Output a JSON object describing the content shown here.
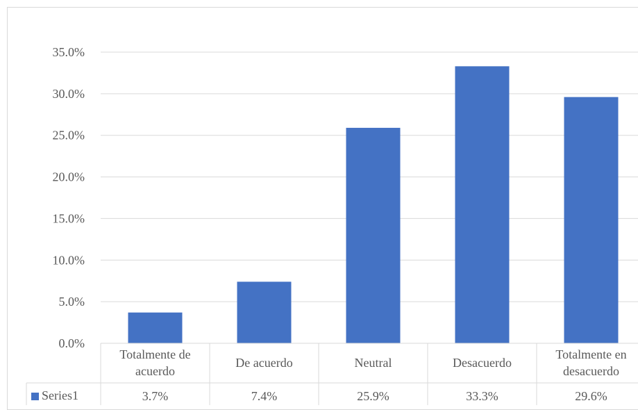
{
  "chart_data": {
    "type": "bar",
    "categories": [
      [
        "Totalmente de",
        "acuerdo"
      ],
      [
        "De acuerdo"
      ],
      [
        "Neutral"
      ],
      [
        "Desacuerdo"
      ],
      [
        "Totalmente en",
        "desacuerdo"
      ]
    ],
    "series": [
      {
        "name": "Series1",
        "values": [
          3.7,
          7.4,
          25.9,
          33.3,
          29.6
        ],
        "labels": [
          "3.7%",
          "7.4%",
          "25.9%",
          "33.3%",
          "29.6%"
        ],
        "color": "#4472c4"
      }
    ],
    "yticks": [
      "0.0%",
      "5.0%",
      "10.0%",
      "15.0%",
      "20.0%",
      "25.0%",
      "30.0%",
      "35.0%"
    ],
    "ylim": [
      0,
      35
    ],
    "grid": true,
    "data_table": true,
    "colors": {
      "grid": "#d9d9d9",
      "text": "#595959"
    }
  }
}
